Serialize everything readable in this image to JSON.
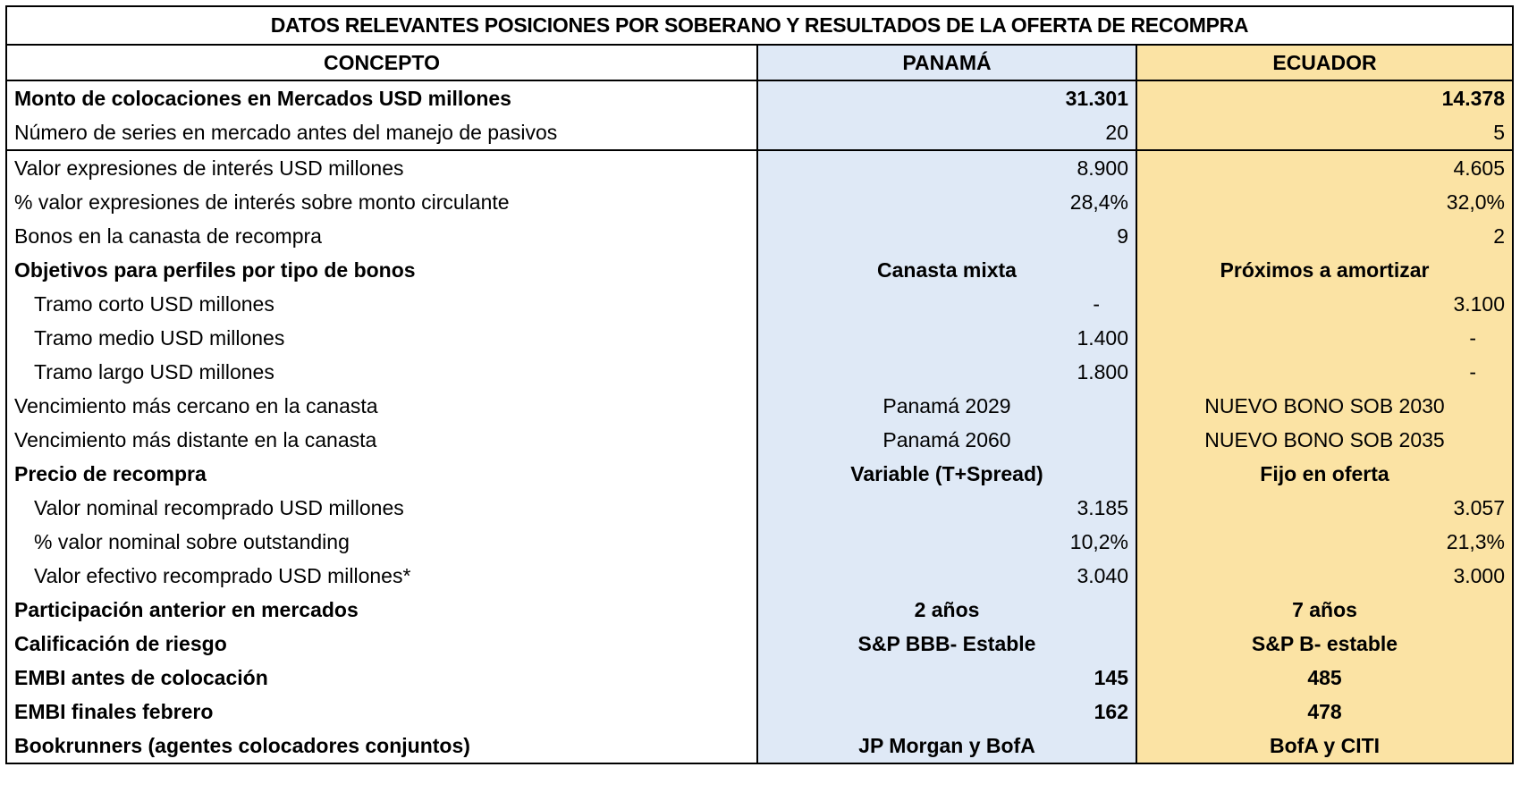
{
  "title": "DATOS RELEVANTES POSICIONES POR SOBERANO Y RESULTADOS DE LA OFERTA DE RECOMPRA",
  "headers": {
    "concepto": "CONCEPTO",
    "panama": "PANAMÁ",
    "ecuador": "ECUADOR"
  },
  "rows": [
    {
      "label": "Monto de colocaciones en Mercados USD millones",
      "panama": "31.301",
      "ecuador": "14.378"
    },
    {
      "label": "Número de series en mercado antes del manejo de pasivos",
      "panama": "20",
      "ecuador": "5"
    },
    {
      "label": "Valor expresiones de interés USD millones",
      "panama": "8.900",
      "ecuador": "4.605"
    },
    {
      "label": "% valor expresiones de interés sobre monto circulante",
      "panama": "28,4%",
      "ecuador": "32,0%"
    },
    {
      "label": "Bonos en la canasta de recompra",
      "panama": "9",
      "ecuador": "2"
    },
    {
      "label": "Objetivos para perfiles por tipo de bonos",
      "panama": "Canasta mixta",
      "ecuador": "Próximos a amortizar"
    },
    {
      "label": "Tramo corto USD millones",
      "panama": "-",
      "ecuador": "3.100"
    },
    {
      "label": "Tramo medio USD millones",
      "panama": "1.400",
      "ecuador": "-"
    },
    {
      "label": "Tramo largo USD millones",
      "panama": "1.800",
      "ecuador": "-"
    },
    {
      "label": "Vencimiento más cercano en la canasta",
      "panama": "Panamá 2029",
      "ecuador": "NUEVO BONO SOB 2030"
    },
    {
      "label": "Vencimiento más distante en la canasta",
      "panama": "Panamá 2060",
      "ecuador": "NUEVO BONO SOB 2035"
    },
    {
      "label": "Precio de recompra",
      "panama": "Variable (T+Spread)",
      "ecuador": "Fijo en oferta"
    },
    {
      "label": "Valor nominal recomprado USD millones",
      "panama": "3.185",
      "ecuador": "3.057"
    },
    {
      "label": "% valor nominal sobre outstanding",
      "panama": "10,2%",
      "ecuador": "21,3%"
    },
    {
      "label": "Valor efectivo recomprado USD millones*",
      "panama": "3.040",
      "ecuador": "3.000"
    },
    {
      "label": "Participación anterior en mercados",
      "panama": "2 años",
      "ecuador": "7 años"
    },
    {
      "label": "Calificación de riesgo",
      "panama": "S&P BBB- Estable",
      "ecuador": "S&P B- estable"
    },
    {
      "label": "EMBI antes de colocación",
      "panama": "145",
      "ecuador": "485"
    },
    {
      "label": "EMBI finales febrero",
      "panama": "162",
      "ecuador": "478"
    },
    {
      "label": "Bookrunners (agentes colocadores conjuntos)",
      "panama": "JP Morgan y BofA",
      "ecuador": "BofA y CITI"
    }
  ]
}
